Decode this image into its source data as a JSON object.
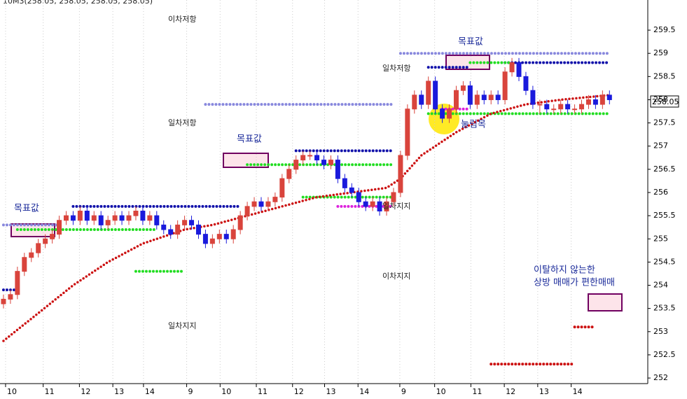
{
  "chart_data": {
    "type": "candlestick",
    "header": "10M3(258.05, 258.05, 258.05, 258.05)",
    "last_label": "258.05",
    "up_color": "#d9443c",
    "down_color": "#1a1adc",
    "xlim": [
      -0.5,
      92.5
    ],
    "ylim": [
      251.88,
      260.15
    ],
    "yticks": [
      252,
      252.5,
      253,
      253.5,
      254,
      254.5,
      255,
      255.5,
      256,
      256.5,
      257,
      257.5,
      258,
      258.5,
      259,
      259.5
    ],
    "xticks": [
      {
        "value": 0.3,
        "label": "10"
      },
      {
        "value": 5.7,
        "label": "11"
      },
      {
        "value": 10.9,
        "label": "12"
      },
      {
        "value": 15.7,
        "label": "13"
      },
      {
        "value": 20.1,
        "label": "14"
      },
      {
        "value": 26.3,
        "label": "9"
      },
      {
        "value": 31.1,
        "label": "10"
      },
      {
        "value": 36.3,
        "label": "11"
      },
      {
        "value": 41.5,
        "label": "12"
      },
      {
        "value": 46.1,
        "label": "13"
      },
      {
        "value": 50.9,
        "label": "14"
      },
      {
        "value": 56.9,
        "label": "9"
      },
      {
        "value": 61.9,
        "label": "10"
      },
      {
        "value": 67.1,
        "label": "11"
      },
      {
        "value": 71.9,
        "label": "12"
      },
      {
        "value": 76.7,
        "label": "13"
      },
      {
        "value": 81.5,
        "label": "14"
      }
    ],
    "open": [
      253.6,
      253.7,
      253.8,
      254.3,
      254.6,
      254.7,
      254.9,
      255.0,
      255.1,
      255.4,
      255.5,
      255.4,
      255.6,
      255.4,
      255.5,
      255.3,
      255.4,
      255.5,
      255.4,
      255.5,
      255.6,
      255.4,
      255.5,
      255.3,
      255.2,
      255.1,
      255.3,
      255.4,
      255.3,
      255.1,
      254.9,
      255.0,
      255.1,
      255.0,
      255.2,
      255.5,
      255.7,
      255.8,
      255.7,
      255.8,
      255.9,
      256.3,
      256.5,
      256.7,
      256.8,
      256.8,
      256.7,
      256.6,
      256.7,
      256.3,
      256.1,
      256.0,
      255.8,
      255.7,
      255.8,
      255.6,
      255.8,
      256.0,
      256.8,
      257.8,
      258.1,
      257.9,
      258.4,
      257.8,
      257.6,
      257.8,
      258.2,
      258.3,
      257.9,
      258.1,
      258.0,
      258.1,
      258.0,
      258.6,
      258.8,
      258.5,
      258.2,
      257.9,
      257.9,
      257.8,
      257.8,
      257.9,
      257.8,
      257.8,
      257.9,
      258.0,
      257.9,
      258.1
    ],
    "high": [
      253.8,
      253.9,
      254.4,
      254.7,
      254.8,
      255.0,
      255.1,
      255.2,
      255.5,
      255.6,
      255.6,
      255.7,
      255.7,
      255.6,
      255.6,
      255.5,
      255.6,
      255.6,
      255.6,
      255.7,
      255.7,
      255.6,
      255.6,
      255.4,
      255.3,
      255.4,
      255.5,
      255.5,
      255.4,
      255.2,
      255.1,
      255.2,
      255.2,
      255.3,
      255.6,
      255.8,
      255.9,
      255.9,
      255.9,
      256.0,
      256.4,
      256.6,
      256.8,
      256.9,
      256.9,
      256.9,
      256.8,
      256.8,
      256.8,
      256.4,
      256.2,
      256.1,
      255.9,
      255.9,
      255.9,
      255.9,
      256.1,
      256.9,
      257.9,
      258.2,
      258.2,
      258.5,
      258.5,
      257.9,
      257.9,
      258.3,
      258.4,
      258.4,
      258.2,
      258.2,
      258.2,
      258.2,
      258.7,
      258.9,
      258.9,
      258.6,
      258.3,
      258.0,
      258.0,
      257.9,
      258.0,
      258.0,
      257.9,
      258.0,
      258.1,
      258.1,
      258.2,
      258.2
    ],
    "low": [
      253.5,
      253.6,
      253.7,
      254.2,
      254.5,
      254.6,
      254.8,
      254.9,
      255.0,
      255.3,
      255.3,
      255.3,
      255.3,
      255.3,
      255.2,
      255.2,
      255.3,
      255.3,
      255.3,
      255.4,
      255.3,
      255.3,
      255.2,
      255.1,
      255.0,
      255.0,
      255.2,
      255.2,
      255.0,
      254.8,
      254.8,
      254.9,
      254.9,
      254.9,
      255.1,
      255.4,
      255.6,
      255.6,
      255.6,
      255.7,
      255.8,
      256.2,
      256.4,
      256.6,
      256.7,
      256.6,
      256.5,
      256.5,
      256.2,
      256.0,
      255.9,
      255.7,
      255.6,
      255.6,
      255.5,
      255.5,
      255.7,
      255.9,
      256.7,
      257.7,
      257.8,
      257.8,
      257.7,
      257.5,
      257.5,
      257.7,
      258.1,
      257.8,
      257.8,
      257.9,
      257.9,
      257.9,
      257.9,
      258.5,
      258.4,
      258.1,
      257.8,
      257.7,
      257.7,
      257.7,
      257.7,
      257.7,
      257.7,
      257.7,
      257.8,
      257.8,
      257.8,
      257.9
    ],
    "close": [
      253.7,
      253.8,
      254.3,
      254.6,
      254.7,
      254.9,
      255.0,
      255.1,
      255.4,
      255.5,
      255.4,
      255.6,
      255.4,
      255.5,
      255.3,
      255.4,
      255.5,
      255.4,
      255.5,
      255.6,
      255.4,
      255.5,
      255.3,
      255.2,
      255.1,
      255.3,
      255.4,
      255.3,
      255.1,
      254.9,
      255.0,
      255.1,
      255.0,
      255.2,
      255.5,
      255.7,
      255.8,
      255.7,
      255.8,
      255.9,
      256.3,
      256.5,
      256.7,
      256.8,
      256.8,
      256.7,
      256.6,
      256.7,
      256.3,
      256.1,
      256.0,
      255.8,
      255.7,
      255.8,
      255.6,
      255.8,
      256.0,
      256.8,
      257.8,
      258.1,
      257.9,
      258.4,
      257.8,
      257.6,
      257.8,
      258.2,
      258.3,
      257.9,
      258.1,
      258.0,
      258.1,
      258.0,
      258.6,
      258.8,
      258.5,
      258.2,
      257.9,
      257.9,
      257.8,
      257.8,
      257.9,
      257.8,
      257.8,
      257.9,
      258.0,
      257.9,
      258.1,
      258.0
    ],
    "overlays": [
      {
        "color": "#cc1111",
        "x": [
          0,
          5,
          10,
          15,
          20,
          26,
          30,
          35,
          40,
          45,
          50,
          55,
          57,
          60,
          65,
          70,
          75,
          80,
          87
        ],
        "values": [
          252.8,
          253.4,
          254.0,
          254.5,
          254.9,
          255.2,
          255.3,
          255.5,
          255.7,
          255.9,
          256.0,
          256.1,
          256.3,
          256.8,
          257.3,
          257.7,
          257.9,
          258.0,
          258.1
        ]
      }
    ],
    "levels": [
      {
        "color": "#1111aa",
        "x": [
          0,
          2
        ],
        "value": 253.9
      },
      {
        "color": "#1111aa",
        "x": [
          10,
          34
        ],
        "value": 255.7
      },
      {
        "color": "#1111aa",
        "x": [
          42,
          56
        ],
        "value": 256.9
      },
      {
        "color": "#1111aa",
        "x": [
          61,
          67
        ],
        "value": 258.7
      },
      {
        "color": "#1111aa",
        "x": [
          72,
          87
        ],
        "value": 258.8
      },
      {
        "color": "#8888dd",
        "x": [
          0,
          8
        ],
        "value": 255.3
      },
      {
        "color": "#8888dd",
        "x": [
          29,
          56
        ],
        "value": 257.9
      },
      {
        "color": "#8888dd",
        "x": [
          57,
          87
        ],
        "value": 259.0
      },
      {
        "color": "#22dd22",
        "x": [
          2,
          22
        ],
        "value": 255.2
      },
      {
        "color": "#22dd22",
        "x": [
          19,
          26
        ],
        "value": 254.3
      },
      {
        "color": "#22dd22",
        "x": [
          35,
          56
        ],
        "value": 256.6
      },
      {
        "color": "#22dd22",
        "x": [
          43,
          56
        ],
        "value": 255.9
      },
      {
        "color": "#22dd22",
        "x": [
          61,
          87
        ],
        "value": 257.7
      },
      {
        "color": "#22dd22",
        "x": [
          67,
          73
        ],
        "value": 258.8
      },
      {
        "color": "#dd22dd",
        "x": [
          48,
          56
        ],
        "value": 255.7
      },
      {
        "color": "#dd22dd",
        "x": [
          63,
          67
        ],
        "value": 257.8
      },
      {
        "color": "#cc1111",
        "x": [
          70,
          82
        ],
        "value": 252.3
      },
      {
        "color": "#cc1111",
        "x": [
          82,
          85
        ],
        "value": 253.1
      }
    ],
    "annotations": [
      "목표값",
      "목표값",
      "목표값",
      "이차저항",
      "일차저항",
      "일차저항",
      "일차지지",
      "일차지지",
      "이차지지",
      "눌림목",
      "이탈하지 않는한",
      "상방 매매가 편한매매"
    ]
  }
}
